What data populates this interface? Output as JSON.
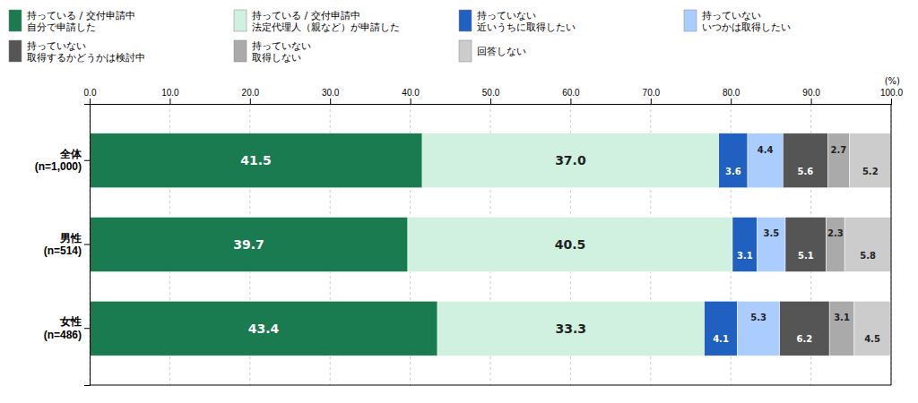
{
  "chart_data": {
    "type": "bar",
    "orientation": "horizontal",
    "stacked": true,
    "data_labels": true,
    "grid": true,
    "legend": "top",
    "annotations": [
      "(%)"
    ],
    "categories": [
      "全体\n(n=1,000)",
      "男性\n(n=514)",
      "女性\n(n=486)"
    ],
    "series": [
      {
        "name": "持っている / 交付申請中\n自分で申請した",
        "color": "#1a7a50",
        "values": [
          41.5,
          39.7,
          43.4
        ]
      },
      {
        "name": "持っている / 交付申請中\n法定代理人（親など）が申請した",
        "color": "#d0f0e0",
        "values": [
          37.0,
          40.5,
          33.3
        ],
        "value_labels": [
          "37.0",
          "40.5",
          "33.3"
        ]
      },
      {
        "name": "持っていない\n近いうちに取得したい",
        "color": "#2060c0",
        "values": [
          3.6,
          3.1,
          4.1
        ]
      },
      {
        "name": "持っていない\nいつかは取得したい",
        "color": "#aaccff",
        "values": [
          4.4,
          3.5,
          5.3
        ]
      },
      {
        "name": "持っていない\n取得するかどうかは検討中",
        "color": "#555555",
        "values": [
          5.6,
          5.1,
          6.2
        ]
      },
      {
        "name": "持っていない\n取得しない",
        "color": "#aaaaaa",
        "values": [
          2.7,
          2.3,
          3.1
        ]
      },
      {
        "name": "回答しない",
        "color": "#cccccc",
        "values": [
          5.2,
          5.8,
          4.5
        ]
      }
    ],
    "xlim": [
      0,
      100
    ],
    "xticks": [
      {
        "value": 0,
        "label": "0.0"
      },
      {
        "value": 10,
        "label": "10.0"
      },
      {
        "value": 20,
        "label": "20.0"
      },
      {
        "value": 30,
        "label": "30.0"
      },
      {
        "value": 40,
        "label": "40.0"
      },
      {
        "value": 50,
        "label": "50.0"
      },
      {
        "value": 60,
        "label": "60.0"
      },
      {
        "value": 70,
        "label": "70.0"
      },
      {
        "value": 80,
        "label": "80.0"
      },
      {
        "value": 90,
        "label": "90.0"
      },
      {
        "value": 100,
        "label": "100.0"
      }
    ]
  }
}
